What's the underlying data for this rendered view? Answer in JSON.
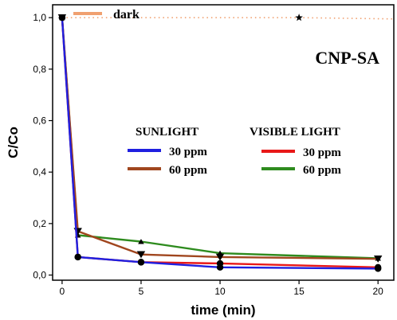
{
  "chart_data": {
    "type": "line",
    "title": "CNP-SA",
    "xlabel": "time (min)",
    "ylabel": "C/Co",
    "xlim": [
      -0.6,
      21
    ],
    "ylim": [
      -0.02,
      1.05
    ],
    "x_ticks": [
      0,
      5,
      10,
      15,
      20
    ],
    "x_tick_labels": [
      "0",
      "5",
      "10",
      "15",
      "20"
    ],
    "y_ticks": [
      0.0,
      0.2,
      0.4,
      0.6,
      0.8,
      1.0
    ],
    "y_tick_labels": [
      "0,0",
      "0,2",
      "0,4",
      "0,6",
      "0,8",
      "1,0"
    ],
    "grid": false,
    "legend_groups": [
      {
        "title": "SUNLIGHT",
        "entries": [
          "30 ppm",
          "60 ppm"
        ]
      },
      {
        "title": "VISIBLE LIGHT",
        "entries": [
          "30 ppm",
          "60 ppm"
        ]
      }
    ],
    "dark_legend_label": "dark",
    "series": [
      {
        "name": "dark",
        "color": "#f0a070",
        "style": "dotted",
        "marker": "star",
        "x": [
          0,
          15,
          21
        ],
        "y": [
          1.0,
          1.0,
          0.995
        ]
      },
      {
        "name": "30 ppm",
        "group": "SUNLIGHT",
        "color": "#1f1fe0",
        "marker": "circle",
        "x": [
          0,
          1,
          5,
          10,
          20
        ],
        "y": [
          1.0,
          0.07,
          0.05,
          0.03,
          0.025
        ]
      },
      {
        "name": "60 ppm",
        "group": "SUNLIGHT",
        "color": "#a0461e",
        "marker": "triangle-down",
        "x": [
          0,
          1,
          5,
          10,
          20
        ],
        "y": [
          1.0,
          0.17,
          0.08,
          0.07,
          0.063
        ]
      },
      {
        "name": "30 ppm",
        "group": "VISIBLE LIGHT",
        "color": "#e81818",
        "marker": "circle",
        "x": [
          0,
          1,
          5,
          10,
          20
        ],
        "y": [
          1.0,
          0.07,
          0.05,
          0.045,
          0.03
        ]
      },
      {
        "name": "60 ppm",
        "group": "VISIBLE LIGHT",
        "color": "#2e8b1e",
        "marker": "triangle-up",
        "x": [
          0,
          1,
          5,
          10,
          20
        ],
        "y": [
          1.0,
          0.155,
          0.13,
          0.085,
          0.065
        ]
      }
    ]
  }
}
